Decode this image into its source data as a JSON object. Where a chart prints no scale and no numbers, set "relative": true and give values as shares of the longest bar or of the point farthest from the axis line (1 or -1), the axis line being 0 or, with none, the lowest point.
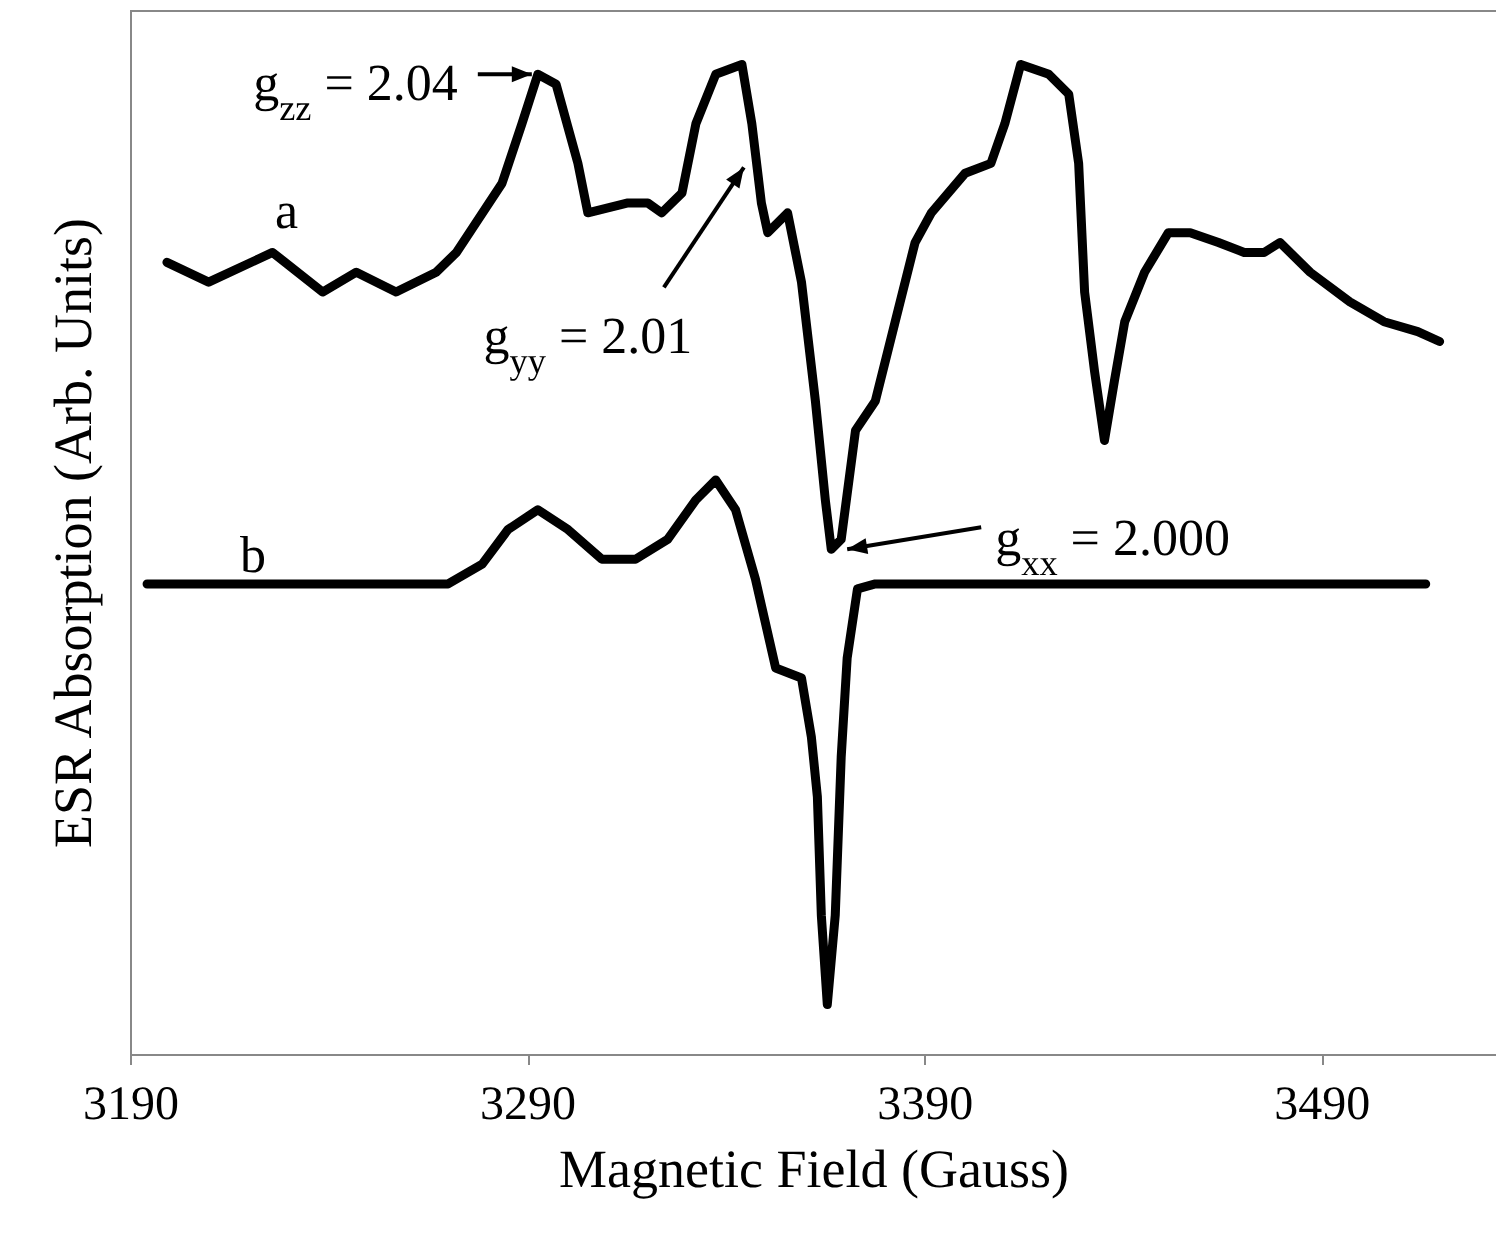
{
  "chart_data": {
    "type": "line",
    "xlabel": "Magnetic Field (Gauss)",
    "ylabel": "ESR Absorption (Arb. Units)",
    "relative": true,
    "xlim": [
      3190,
      3534
    ],
    "xticks": [
      3190,
      3290,
      3390,
      3490
    ],
    "series": [
      {
        "name": "a",
        "color": "#000000",
        "x": [
          3199.3,
          3209.8,
          3225.9,
          3238.5,
          3247.0,
          3257.0,
          3267.1,
          3272.2,
          3283.7,
          3288.7,
          3292.7,
          3297.3,
          3302.8,
          3305.3,
          3315.4,
          3320.4,
          3323.9,
          3329.0,
          3332.5,
          3337.5,
          3344.1,
          3346.6,
          3349.0,
          3350.6,
          3355.6,
          3359.1,
          3362.6,
          3365.1,
          3366.6,
          3369.1,
          3372.7,
          3377.7,
          3382.7,
          3387.7,
          3391.8,
          3400.3,
          3406.8,
          3410.3,
          3414.3,
          3421.4,
          3426.4,
          3428.9,
          3430.4,
          3432.9,
          3435.4,
          3437.9,
          3440.5,
          3445.5,
          3451.5,
          3457.0,
          3464.1,
          3470.6,
          3475.6,
          3479.6,
          3487.2,
          3497.2,
          3505.8,
          3514.3,
          3519.8
        ],
        "values": [
          0.8,
          0.78,
          0.81,
          0.77,
          0.79,
          0.77,
          0.79,
          0.81,
          0.88,
          0.94,
          0.99,
          0.98,
          0.9,
          0.85,
          0.86,
          0.86,
          0.85,
          0.87,
          0.94,
          0.99,
          1.0,
          0.94,
          0.86,
          0.83,
          0.85,
          0.78,
          0.66,
          0.56,
          0.51,
          0.52,
          0.63,
          0.66,
          0.74,
          0.82,
          0.85,
          0.89,
          0.9,
          0.94,
          1.0,
          0.99,
          0.97,
          0.9,
          0.77,
          0.69,
          0.62,
          0.68,
          0.74,
          0.79,
          0.83,
          0.83,
          0.82,
          0.81,
          0.81,
          0.82,
          0.79,
          0.76,
          0.74,
          0.73,
          0.72
        ]
      },
      {
        "name": "b",
        "color": "#000000",
        "x": [
          3194.3,
          3270.1,
          3278.7,
          3285.2,
          3292.7,
          3300.3,
          3308.8,
          3317.3,
          3325.4,
          3332.5,
          3337.5,
          3342.5,
          3347.5,
          3352.6,
          3359.1,
          3361.6,
          3363.1,
          3364.1,
          3365.6,
          3367.6,
          3369.1,
          3370.6,
          3373.2,
          3377.7,
          3516.3
        ],
        "values": [
          0.475,
          0.475,
          0.495,
          0.53,
          0.55,
          0.53,
          0.5,
          0.5,
          0.52,
          0.56,
          0.58,
          0.55,
          0.48,
          0.39,
          0.38,
          0.32,
          0.26,
          0.14,
          0.05,
          0.14,
          0.3,
          0.4,
          0.47,
          0.475,
          0.475
        ]
      }
    ],
    "annotations": [
      {
        "text": "g$_{zz}$ = 2.04",
        "x": 3292.7,
        "y": 0.99
      },
      {
        "text": "g$_{yy}$ = 2.01",
        "x": 3345.6,
        "y": 0.9
      },
      {
        "text": "g$_{xx}$ = 2.000",
        "x": 3369.1,
        "y": 0.51
      }
    ]
  }
}
